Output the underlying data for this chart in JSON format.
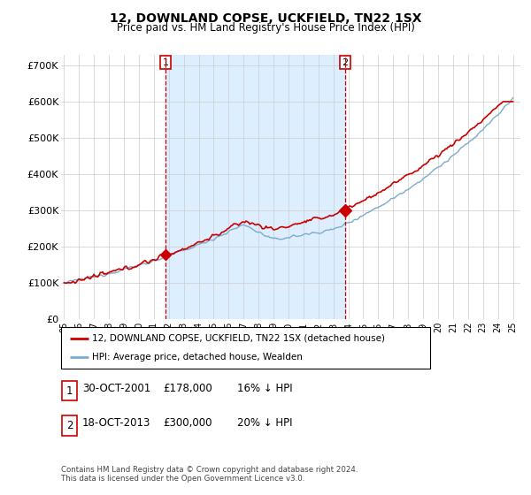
{
  "title": "12, DOWNLAND COPSE, UCKFIELD, TN22 1SX",
  "subtitle": "Price paid vs. HM Land Registry's House Price Index (HPI)",
  "legend_label_red": "12, DOWNLAND COPSE, UCKFIELD, TN22 1SX (detached house)",
  "legend_label_blue": "HPI: Average price, detached house, Wealden",
  "transaction1_date": "30-OCT-2001",
  "transaction1_price": "£178,000",
  "transaction1_hpi": "16% ↓ HPI",
  "transaction2_date": "18-OCT-2013",
  "transaction2_price": "£300,000",
  "transaction2_hpi": "20% ↓ HPI",
  "footer": "Contains HM Land Registry data © Crown copyright and database right 2024.\nThis data is licensed under the Open Government Licence v3.0.",
  "ytick_labels": [
    "£0",
    "£100K",
    "£200K",
    "£300K",
    "£400K",
    "£500K",
    "£600K",
    "£700K"
  ],
  "yticks": [
    0,
    100000,
    200000,
    300000,
    400000,
    500000,
    600000,
    700000
  ],
  "red_color": "#cc0000",
  "blue_color": "#7aadcf",
  "shade_color": "#ddeeff",
  "vline_color": "#cc0000",
  "background_color": "#ffffff",
  "grid_color": "#cccccc",
  "t1_year": 2001.79,
  "t1_price": 178000,
  "t2_year": 2013.79,
  "t2_price": 300000,
  "xlim_left": 1994.8,
  "xlim_right": 2025.5,
  "ylim_top": 730000
}
